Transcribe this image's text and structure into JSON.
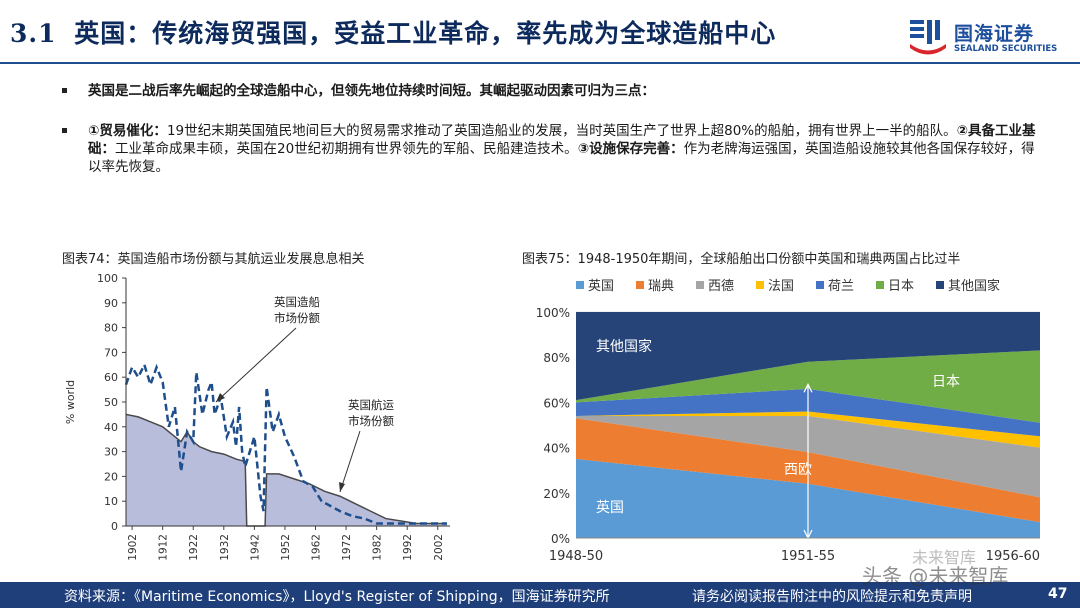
{
  "header": {
    "number": "3.1",
    "title": "英国：传统海贸强国，受益工业革命，率先成为全球造船中心",
    "logo_cn": "国海证券",
    "logo_en": "SEALAND SECURITIES"
  },
  "bullets": {
    "b1": "英国是二战后率先崛起的全球造船中心，但领先地位持续时间短。其崛起驱动因素可归为三点：",
    "b2": {
      "p1_bold": "①贸易催化：",
      "p1": "19世纪末期英国殖民地间巨大的贸易需求推动了英国造船业的发展，当时英国生产了世界上超80%的船舶，拥有世界上一半的船队。",
      "p2_bold": "②具备工业基础：",
      "p2": "工业革命成果丰硕，英国在20世纪初期拥有世界领先的军船、民船建造技术。",
      "p3_bold": "③设施保存完善：",
      "p3": "作为老牌海运强国，英国造船设施较其他各国保存较好，得以率先恢复。"
    }
  },
  "figures": {
    "fig1_title": "图表74：英国造船市场份额与其航运业发展息息相关",
    "fig2_title": "图表75：1948-1950年期间，全球船舶出口份额中英国和瑞典两国占比过半"
  },
  "chart_data": [
    {
      "type": "line",
      "title": "图表74：英国造船市场份额与其航运业发展息息相关",
      "xlabel": "",
      "ylabel": "% world",
      "xlim": [
        1900,
        2006
      ],
      "ylim": [
        0,
        100
      ],
      "x_ticks": [
        "1902",
        "1912",
        "1922",
        "1932",
        "1942",
        "1952",
        "1962",
        "1972",
        "1982",
        "1992",
        "2002"
      ],
      "y_ticks": [
        "0",
        "10",
        "20",
        "30",
        "40",
        "50",
        "60",
        "70",
        "80",
        "90",
        "100"
      ],
      "annotations": [
        "英国造船\n市场份额",
        "英国航运\n市场份额"
      ],
      "series": [
        {
          "name": "英国造船市场份额",
          "style": "dashed",
          "color": "#1f4e8c",
          "x": [
            1900,
            1902,
            1904,
            1906,
            1908,
            1910,
            1912,
            1914,
            1916,
            1918,
            1920,
            1922,
            1923,
            1925,
            1927,
            1928,
            1929,
            1931,
            1933,
            1935,
            1936,
            1937,
            1938,
            1939,
            1942,
            1944,
            1945,
            1946,
            1948,
            1950,
            1952,
            1955,
            1958,
            1961,
            1964,
            1967,
            1970,
            1974,
            1978,
            1982,
            1986,
            1990,
            1994,
            1998,
            2002,
            2005
          ],
          "y": [
            57,
            64,
            60,
            65,
            57,
            64,
            58,
            40,
            48,
            22,
            38,
            34,
            62,
            45,
            55,
            58,
            45,
            52,
            36,
            42,
            32,
            48,
            30,
            24,
            36,
            12,
            6,
            56,
            38,
            45,
            36,
            28,
            18,
            16,
            10,
            8,
            6,
            4,
            3,
            1,
            1,
            1,
            1,
            1,
            1,
            1
          ]
        },
        {
          "name": "英国航运市场份额",
          "style": "area",
          "color": "#4a4a4a",
          "fill": "#b9bddc",
          "x": [
            1900,
            1904,
            1908,
            1912,
            1916,
            1918,
            1920,
            1922,
            1924,
            1928,
            1932,
            1936,
            1939,
            1939.5,
            1945.5,
            1946,
            1950,
            1955,
            1960,
            1965,
            1970,
            1975,
            1980,
            1985,
            1990,
            1995,
            2000,
            2005
          ],
          "y": [
            45,
            44,
            42,
            40,
            36,
            34,
            38,
            34,
            32,
            30,
            29,
            27,
            26,
            0,
            0,
            21,
            21,
            19,
            17,
            14,
            12,
            9,
            6,
            3,
            2,
            1,
            1,
            1
          ]
        }
      ]
    },
    {
      "type": "area",
      "stacked": true,
      "title": "图表75：1948-1950年期间，全球船舶出口份额中英国和瑞典两国占比过半",
      "categories": [
        "1948-50",
        "1951-55",
        "1956-60"
      ],
      "ylim": [
        0,
        100
      ],
      "y_ticks": [
        "0%",
        "20%",
        "40%",
        "60%",
        "80%",
        "100%"
      ],
      "legend_position": "top",
      "area_labels": [
        "其他国家",
        "日本",
        "西欧",
        "英国"
      ],
      "series": [
        {
          "name": "英国",
          "color": "#5b9bd5",
          "values": [
            35,
            24,
            7
          ]
        },
        {
          "name": "瑞典",
          "color": "#ed7d31",
          "values": [
            18,
            14,
            11
          ]
        },
        {
          "name": "西德",
          "color": "#a5a5a5",
          "values": [
            1,
            16,
            22
          ]
        },
        {
          "name": "法国",
          "color": "#ffc000",
          "values": [
            0,
            2,
            5
          ]
        },
        {
          "name": "荷兰",
          "color": "#4472c4",
          "values": [
            6,
            10,
            6
          ]
        },
        {
          "name": "日本",
          "color": "#70ad47",
          "values": [
            1,
            12,
            32
          ]
        },
        {
          "name": "其他国家",
          "color": "#264478",
          "values": [
            39,
            22,
            17
          ]
        }
      ]
    }
  ],
  "footer": {
    "source": "资料来源：《Maritime Economics》，Lloyd's Register of Shipping，国海证券研究所",
    "disclaimer": "请务必阅读报告附注中的风险提示和免责声明",
    "page": "47",
    "watermark": "头条 @未来智库",
    "watermark2": "未来智库"
  }
}
